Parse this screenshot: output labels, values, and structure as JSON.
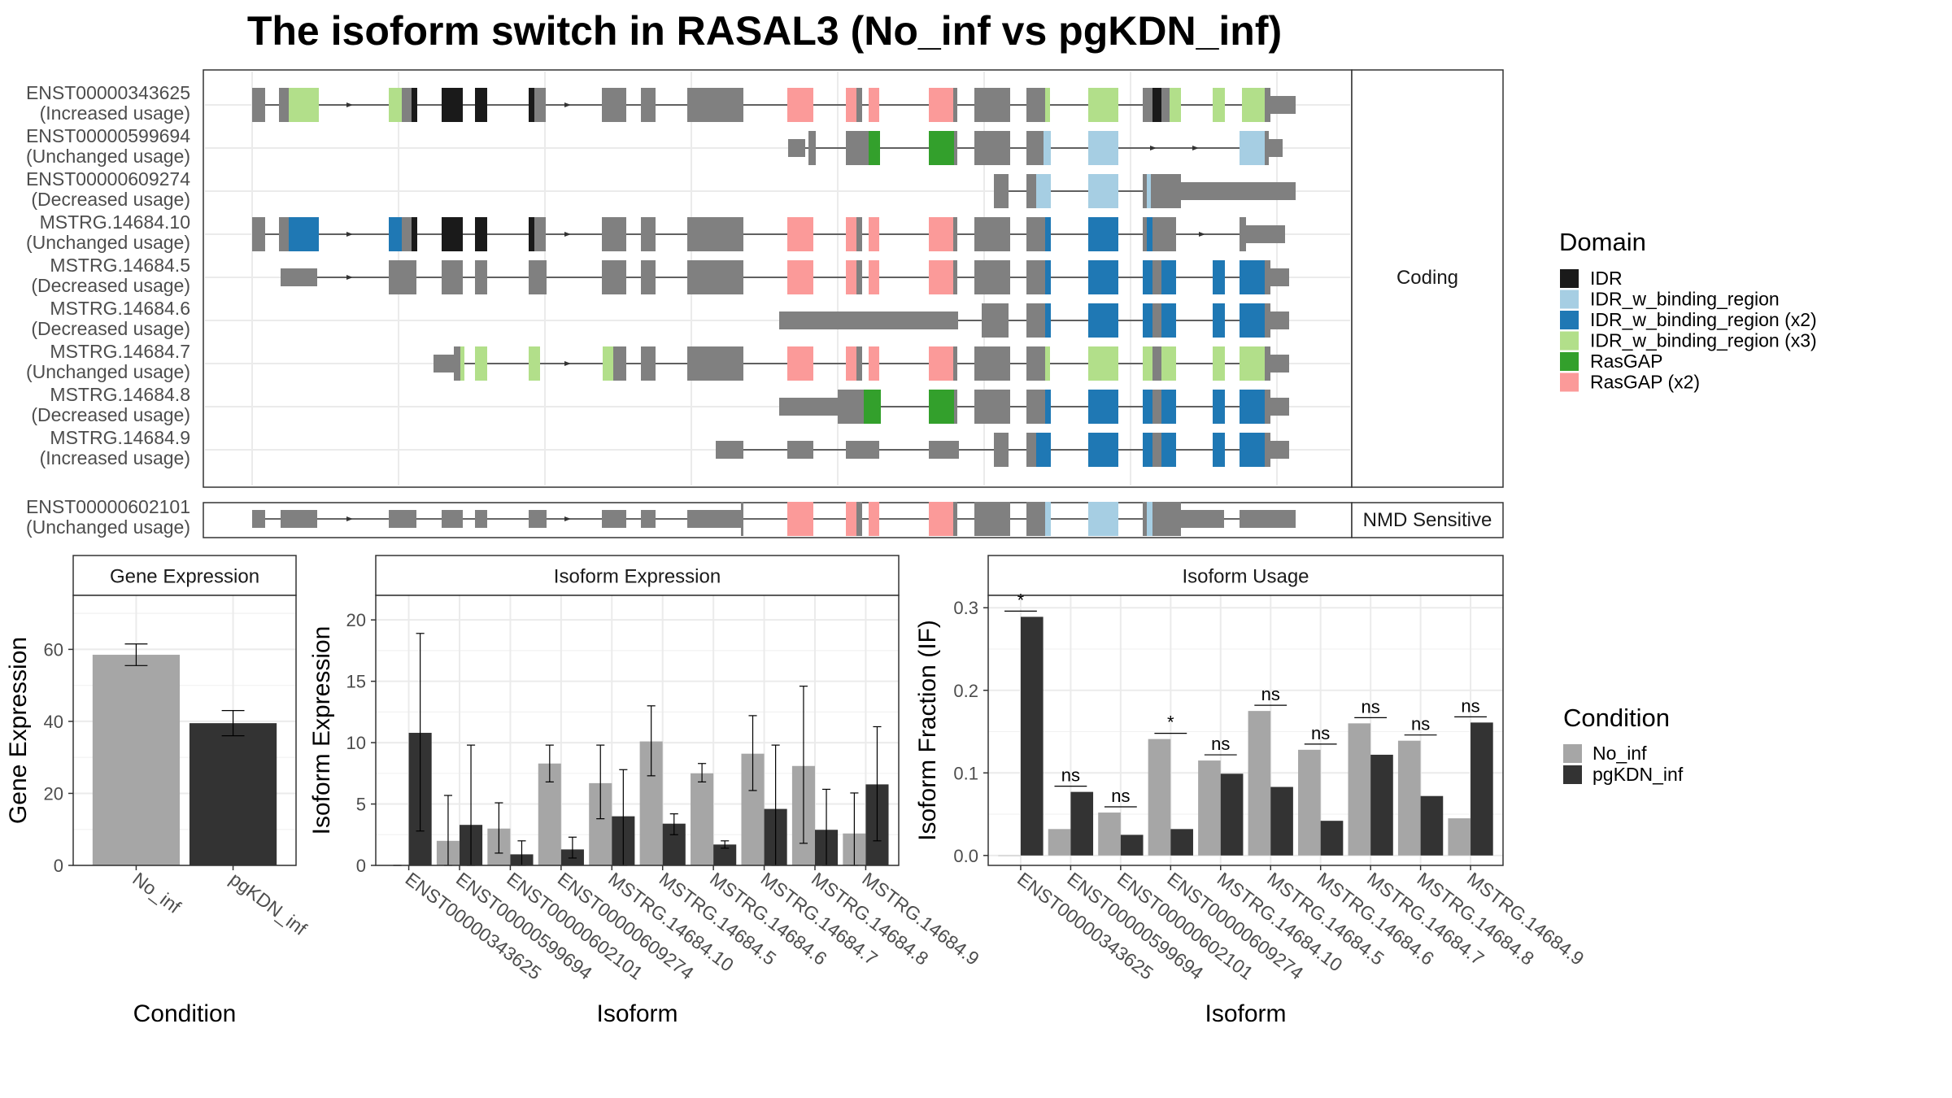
{
  "title": "The isoform switch in RASAL3 (No_inf vs pgKDN_inf)",
  "colors": {
    "intron": "#333333",
    "noncoding": "#808080",
    "no_inf": "#A6A6A6",
    "pgkdn_inf": "#333333",
    "panel_border": "#333333",
    "grid": "#EBEBEB",
    "strip_fill": "#FFFFFF"
  },
  "domain_legend": {
    "title": "Domain",
    "items": [
      {
        "label": "IDR",
        "color": "#1A1A1A"
      },
      {
        "label": "IDR_w_binding_region",
        "color": "#A6CEE3"
      },
      {
        "label": "IDR_w_binding_region (x2)",
        "color": "#1F78B4"
      },
      {
        "label": "IDR_w_binding_region (x3)",
        "color": "#B2DF8A"
      },
      {
        "label": "RasGAP",
        "color": "#33A02C"
      },
      {
        "label": "RasGAP (x2)",
        "color": "#FB9A99"
      }
    ]
  },
  "condition_legend": {
    "title": "Condition",
    "items": [
      {
        "label": "No_inf",
        "color": "#A6A6A6"
      },
      {
        "label": "pgKDN_inf",
        "color": "#333333"
      }
    ]
  },
  "structure": {
    "coding_label": "Coding",
    "nmd_label": "NMD Sensitive",
    "coding_isoforms": [
      {
        "id": "ENST00000343625",
        "usage": "(Increased usage)",
        "span": [
          0.0,
          1.0
        ]
      },
      {
        "id": "ENST00000599694",
        "usage": "(Unchanged usage)",
        "span": [
          0.52,
          1.0
        ]
      },
      {
        "id": "ENST00000609274",
        "usage": "(Decreased usage)",
        "span": [
          0.73,
          1.0
        ]
      },
      {
        "id": "MSTRG.14684.10",
        "usage": "(Unchanged usage)",
        "span": [
          0.0,
          1.0
        ]
      },
      {
        "id": "MSTRG.14684.5",
        "usage": "(Decreased usage)",
        "span": [
          0.03,
          0.98
        ]
      },
      {
        "id": "MSTRG.14684.6",
        "usage": "(Decreased usage)",
        "span": [
          0.51,
          0.98
        ]
      },
      {
        "id": "MSTRG.14684.7",
        "usage": "(Unchanged usage)",
        "span": [
          0.18,
          0.98
        ]
      },
      {
        "id": "MSTRG.14684.8",
        "usage": "(Decreased usage)",
        "span": [
          0.51,
          0.98
        ]
      },
      {
        "id": "MSTRG.14684.9",
        "usage": "(Increased usage)",
        "span": [
          0.45,
          0.98
        ]
      }
    ],
    "nmd_isoforms": [
      {
        "id": "ENST00000602101",
        "usage": "(Unchanged usage)",
        "span": [
          0.0,
          1.0
        ]
      }
    ]
  },
  "chart_data": [
    {
      "type": "bar",
      "title": "Gene Expression",
      "xlabel": "Condition",
      "ylabel": "Gene Expression",
      "categories": [
        "No_inf",
        "pgKDN_inf"
      ],
      "values": [
        58.5,
        39.5
      ],
      "error_low": [
        55.5,
        36
      ],
      "error_high": [
        61.5,
        43
      ],
      "ylim": [
        0,
        75
      ],
      "yticks": [
        0,
        20,
        40,
        60
      ]
    },
    {
      "type": "bar",
      "title": "Isoform Expression",
      "xlabel": "Isoform",
      "ylabel": "Isoform Expression",
      "categories": [
        "ENST00000343625",
        "ENST00000599694",
        "ENST00000602101",
        "ENST00000609274",
        "MSTRG.14684.10",
        "MSTRG.14684.5",
        "MSTRG.14684.6",
        "MSTRG.14684.7",
        "MSTRG.14684.8",
        "MSTRG.14684.9"
      ],
      "series": [
        {
          "name": "No_inf",
          "values": [
            0.0,
            2.0,
            3.0,
            8.3,
            6.7,
            10.1,
            7.5,
            9.1,
            8.1,
            2.6
          ],
          "error_low": [
            0.0,
            0.0,
            1.0,
            6.8,
            3.8,
            7.3,
            6.8,
            6.1,
            1.8,
            0.0
          ],
          "error_high": [
            0.0,
            5.7,
            5.1,
            9.8,
            9.8,
            13.0,
            8.3,
            12.2,
            14.6,
            5.9
          ]
        },
        {
          "name": "pgKDN_inf",
          "values": [
            10.8,
            3.3,
            0.9,
            1.3,
            4.0,
            3.4,
            1.7,
            4.6,
            2.9,
            6.6
          ],
          "error_low": [
            2.8,
            0.0,
            0.0,
            0.6,
            0.0,
            2.5,
            1.4,
            0.0,
            0.0,
            2.0
          ],
          "error_high": [
            18.9,
            9.8,
            2.0,
            2.3,
            7.8,
            4.2,
            2.0,
            9.8,
            6.2,
            11.3
          ]
        }
      ],
      "ylim": [
        0,
        22
      ],
      "yticks": [
        0,
        5,
        10,
        15,
        20
      ]
    },
    {
      "type": "bar",
      "title": "Isoform Usage",
      "xlabel": "Isoform",
      "ylabel": "Isoform Fraction (IF)",
      "categories": [
        "ENST00000343625",
        "ENST00000599694",
        "ENST00000602101",
        "ENST00000609274",
        "MSTRG.14684.10",
        "MSTRG.14684.5",
        "MSTRG.14684.6",
        "MSTRG.14684.7",
        "MSTRG.14684.8",
        "MSTRG.14684.9"
      ],
      "series": [
        {
          "name": "No_inf",
          "values": [
            0.0,
            0.032,
            0.052,
            0.141,
            0.115,
            0.175,
            0.128,
            0.16,
            0.139,
            0.045
          ]
        },
        {
          "name": "pgKDN_inf",
          "values": [
            0.289,
            0.077,
            0.025,
            0.032,
            0.099,
            0.083,
            0.042,
            0.122,
            0.072,
            0.161
          ]
        }
      ],
      "significance": [
        "*",
        "ns",
        "ns",
        "*",
        "ns",
        "ns",
        "ns",
        "ns",
        "ns",
        "ns"
      ],
      "ylim": [
        -0.012,
        0.315
      ],
      "yticks": [
        0.0,
        0.1,
        0.2,
        0.3
      ],
      "ytick_labels": [
        "0.0",
        "0.1",
        "0.2",
        "0.3"
      ]
    }
  ]
}
